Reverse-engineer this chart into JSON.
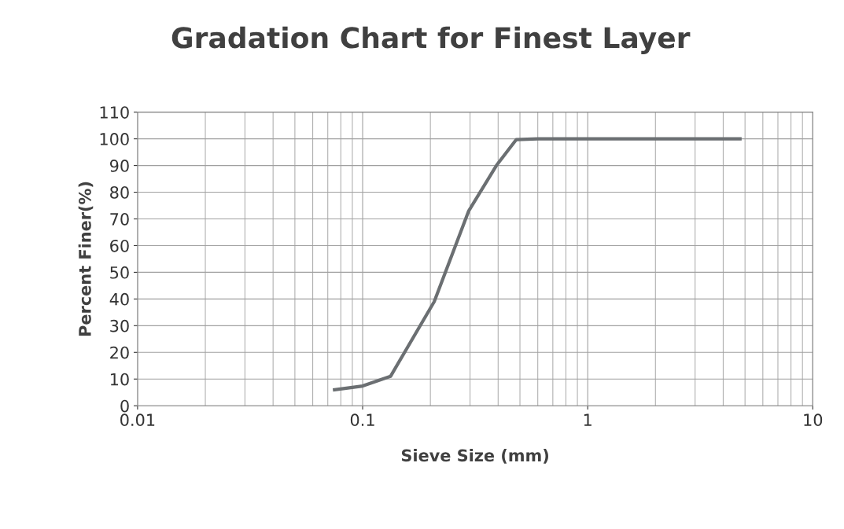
{
  "chart_data": {
    "type": "line",
    "title": "Gradation Chart for Finest Layer",
    "xlabel": "Sieve Size (mm)",
    "ylabel": "Percent Finer(%)",
    "log": "x",
    "xlim": [
      0.01,
      10
    ],
    "xticks": [
      0.01,
      0.1,
      1,
      10
    ],
    "ylim": [
      0,
      110
    ],
    "yticks": [
      0,
      10,
      20,
      30,
      40,
      50,
      60,
      70,
      80,
      90,
      100,
      110
    ],
    "grid": true,
    "marker": "none",
    "line_style": "solid",
    "series": [
      {
        "color": "#6b6f72",
        "x": [
          0.075,
          0.1,
          0.133,
          0.208,
          0.296,
          0.393,
          0.481,
          0.6,
          4.75
        ],
        "values": [
          6,
          7.4,
          11,
          39,
          73,
          90,
          99.7,
          100,
          100
        ]
      }
    ]
  }
}
